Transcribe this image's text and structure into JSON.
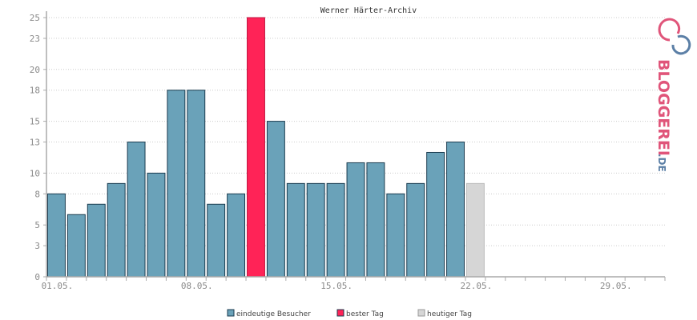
{
  "chart_data": {
    "type": "bar",
    "title": "Werner Härter-Archiv",
    "xlabel": "",
    "ylabel": "",
    "ylim": [
      0,
      25
    ],
    "yticks": [
      0,
      3,
      5,
      8,
      10,
      13,
      15,
      18,
      20,
      23,
      25
    ],
    "x_tick_labels": [
      "01.05.",
      "08.05.",
      "15.05.",
      "22.05.",
      "29.05."
    ],
    "days_in_axis": 31,
    "values": [
      8,
      6,
      7,
      9,
      13,
      10,
      18,
      18,
      7,
      8,
      25,
      15,
      9,
      9,
      9,
      11,
      11,
      8,
      9,
      12,
      13,
      9
    ],
    "best_day_index": 10,
    "today_index": 21,
    "colors": {
      "visitors": "#6aa2b9",
      "best": "#ff2357",
      "today": "#d6d6d6",
      "bar_border": "#1a3b4f",
      "grid": "#cccccc",
      "axis": "#aaaaaa"
    },
    "grid": true,
    "legend_position": "bottom",
    "legend": [
      {
        "key": "visitors",
        "label": "eindeutige Besucher"
      },
      {
        "key": "best",
        "label": "bester Tag"
      },
      {
        "key": "today",
        "label": "heutiger Tag"
      }
    ]
  },
  "logo": {
    "text": "BLOGGEREI",
    "suffix": ".DE",
    "colors": {
      "pink": "#e0557a",
      "blue": "#5b7fa6",
      "grey": "#8e8e9a"
    }
  }
}
